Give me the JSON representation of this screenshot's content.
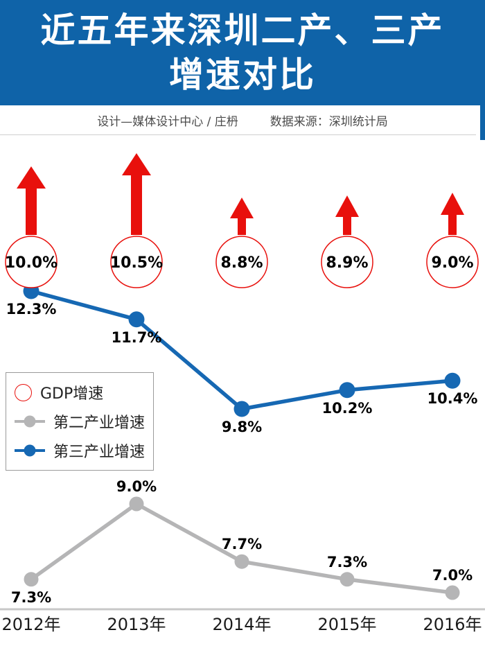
{
  "header": {
    "title_line1": "近五年来深圳二产、三产",
    "title_line2": "增速对比"
  },
  "credits": {
    "design": "设计—媒体设计中心 / 庄枬",
    "source": "数据来源：深圳统计局"
  },
  "colors": {
    "header_blue": "#0f63a8",
    "accent_red": "#e8100c",
    "series_blue": "#1668b3",
    "series_gray": "#b5b5b6",
    "baseline_gray": "#c8c8c8"
  },
  "chart_data": {
    "type": "line",
    "title": "近五年来深圳二产、三产增速对比",
    "categories": [
      "2012年",
      "2013年",
      "2014年",
      "2015年",
      "2016年"
    ],
    "series": [
      {
        "name": "GDP增速",
        "style": "arrow-circle",
        "color": "#e8100c",
        "values": [
          10.0,
          10.5,
          8.8,
          8.9,
          9.0
        ],
        "labels": [
          "10.0%",
          "10.5%",
          "8.8%",
          "8.9%",
          "9.0%"
        ]
      },
      {
        "name": "第二产业增速",
        "style": "line",
        "color": "#b5b5b6",
        "values": [
          7.3,
          9.0,
          7.7,
          7.3,
          7.0
        ],
        "labels": [
          "7.3%",
          "9.0%",
          "7.7%",
          "7.3%",
          "7.0%"
        ],
        "label_side": [
          "below",
          "above",
          "above",
          "above",
          "above"
        ]
      },
      {
        "name": "第三产业增速",
        "style": "line",
        "color": "#1668b3",
        "values": [
          12.3,
          11.7,
          9.8,
          10.2,
          10.4
        ],
        "labels": [
          "12.3%",
          "11.7%",
          "9.8%",
          "10.2%",
          "10.4%"
        ],
        "label_side": [
          "below",
          "below",
          "below",
          "below",
          "below"
        ]
      }
    ],
    "x_axis": {
      "baseline": true,
      "grid": false
    },
    "legend_position": "middle-left"
  }
}
